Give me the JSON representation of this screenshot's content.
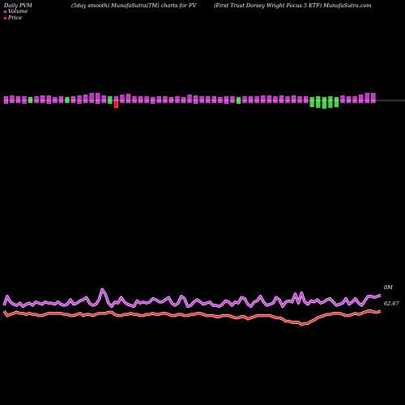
{
  "header": {
    "left": "Daily PVM",
    "center": "(5day smooth) MunafaSutra(TM) charts for FV",
    "right": "(First Trust Dorsey Wright Focus 5 ETF) MunafaSutra.com"
  },
  "colors": {
    "background": "#000000",
    "volume_up": "#e020e0",
    "volume_down": "#30e030",
    "volume_neg": "#ff1010",
    "price": "#ff2020",
    "volume_line": "#d030f0",
    "price_line_outline": "#ffffff"
  },
  "chart_data": [
    {
      "type": "bar",
      "description_series": "volume",
      "legend": [
        {
          "name": "Volume",
          "color": "#e020e0"
        },
        {
          "name": "Price",
          "color": "#ff2020"
        }
      ],
      "bars": [
        {
          "up": 5,
          "down": 4,
          "c": "m"
        },
        {
          "up": 6,
          "down": 3,
          "c": "m"
        },
        {
          "up": 5,
          "down": 3,
          "c": "m"
        },
        {
          "up": 5,
          "down": 4,
          "c": "m"
        },
        {
          "up": 4,
          "down": 3,
          "c": "g"
        },
        {
          "up": 5,
          "down": 3,
          "c": "m"
        },
        {
          "up": 6,
          "down": 3,
          "c": "m"
        },
        {
          "up": 6,
          "down": 4,
          "c": "m"
        },
        {
          "up": 4,
          "down": 3,
          "c": "m"
        },
        {
          "up": 5,
          "down": 3,
          "c": "m"
        },
        {
          "up": 4,
          "down": 3,
          "c": "g"
        },
        {
          "up": 5,
          "down": 3,
          "c": "m"
        },
        {
          "up": 6,
          "down": 4,
          "c": "m"
        },
        {
          "up": 7,
          "down": 3,
          "c": "m"
        },
        {
          "up": 9,
          "down": 3,
          "c": "m"
        },
        {
          "up": 9,
          "down": 4,
          "c": "m"
        },
        {
          "up": 6,
          "down": 3,
          "c": "m"
        },
        {
          "up": 5,
          "down": 4,
          "c": "g"
        },
        {
          "up": 5,
          "down": 9,
          "c": "r"
        },
        {
          "up": 7,
          "down": 3,
          "c": "m"
        },
        {
          "up": 8,
          "down": 3,
          "c": "m"
        },
        {
          "up": 5,
          "down": 3,
          "c": "m"
        },
        {
          "up": 5,
          "down": 3,
          "c": "m"
        },
        {
          "up": 5,
          "down": 3,
          "c": "m"
        },
        {
          "up": 4,
          "down": 4,
          "c": "m"
        },
        {
          "up": 5,
          "down": 3,
          "c": "m"
        },
        {
          "up": 5,
          "down": 3,
          "c": "m"
        },
        {
          "up": 4,
          "down": 3,
          "c": "m"
        },
        {
          "up": 5,
          "down": 3,
          "c": "m"
        },
        {
          "up": 4,
          "down": 3,
          "c": "m"
        },
        {
          "up": 7,
          "down": 3,
          "c": "m"
        },
        {
          "up": 6,
          "down": 4,
          "c": "m"
        },
        {
          "up": 5,
          "down": 3,
          "c": "m"
        },
        {
          "up": 5,
          "down": 3,
          "c": "m"
        },
        {
          "up": 5,
          "down": 3,
          "c": "m"
        },
        {
          "up": 4,
          "down": 3,
          "c": "m"
        },
        {
          "up": 5,
          "down": 4,
          "c": "m"
        },
        {
          "up": 5,
          "down": 3,
          "c": "m"
        },
        {
          "up": 4,
          "down": 4,
          "c": "g"
        },
        {
          "up": 5,
          "down": 3,
          "c": "m"
        },
        {
          "up": 5,
          "down": 3,
          "c": "m"
        },
        {
          "up": 5,
          "down": 3,
          "c": "m"
        },
        {
          "up": 6,
          "down": 3,
          "c": "m"
        },
        {
          "up": 6,
          "down": 3,
          "c": "m"
        },
        {
          "up": 5,
          "down": 3,
          "c": "m"
        },
        {
          "up": 6,
          "down": 3,
          "c": "m"
        },
        {
          "up": 5,
          "down": 3,
          "c": "m"
        },
        {
          "up": 6,
          "down": 3,
          "c": "m"
        },
        {
          "up": 5,
          "down": 3,
          "c": "m"
        },
        {
          "up": 5,
          "down": 3,
          "c": "m"
        },
        {
          "up": 4,
          "down": 8,
          "c": "g"
        },
        {
          "up": 5,
          "down": 9,
          "c": "g"
        },
        {
          "up": 4,
          "down": 10,
          "c": "g"
        },
        {
          "up": 5,
          "down": 9,
          "c": "g"
        },
        {
          "up": 4,
          "down": 8,
          "c": "g"
        },
        {
          "up": 6,
          "down": 3,
          "c": "m"
        },
        {
          "up": 5,
          "down": 3,
          "c": "m"
        },
        {
          "up": 5,
          "down": 3,
          "c": "m"
        },
        {
          "up": 7,
          "down": 3,
          "c": "m"
        },
        {
          "up": 9,
          "down": 3,
          "c": "m"
        },
        {
          "up": 9,
          "down": 3,
          "c": "m"
        }
      ],
      "ylim": [
        -12,
        12
      ]
    },
    {
      "type": "line",
      "series": [
        {
          "color": "#d030f0",
          "values": [
            45,
            53,
            48,
            46,
            45,
            47,
            44,
            46,
            47,
            45,
            48,
            47,
            46,
            48,
            47,
            47,
            46,
            48,
            46,
            45,
            46,
            50,
            46,
            47,
            49,
            50,
            52,
            47,
            45,
            46,
            50,
            59,
            55,
            47,
            44,
            48,
            47,
            52,
            48,
            46,
            45,
            44,
            49,
            47,
            48,
            47,
            48,
            51,
            50,
            48,
            48,
            50,
            52,
            47,
            45,
            47,
            53,
            51,
            44,
            45,
            48,
            50,
            48,
            46,
            47,
            48,
            45,
            45,
            44,
            46,
            49,
            48,
            45,
            48,
            47,
            52,
            51,
            46,
            44,
            48,
            49,
            53,
            48,
            45,
            46,
            47,
            52,
            50,
            44,
            48,
            49,
            48,
            55,
            47,
            56,
            48,
            46,
            49,
            48,
            50,
            47,
            48,
            50,
            51,
            48,
            45,
            46,
            47,
            51,
            46,
            48,
            51,
            47,
            45,
            49,
            53,
            53,
            52,
            53,
            54
          ]
        },
        {
          "color": "#ff2020",
          "values": [
            40,
            36,
            37,
            38,
            39,
            38,
            38,
            37,
            38,
            37,
            37,
            36,
            36,
            37,
            38,
            38,
            38,
            38,
            38,
            37,
            37,
            36,
            36,
            37,
            38,
            36,
            37,
            37,
            36,
            37,
            38,
            38,
            38,
            39,
            39,
            37,
            36,
            36,
            37,
            37,
            38,
            37,
            37,
            36,
            36,
            37,
            37,
            38,
            37,
            37,
            38,
            38,
            37,
            36,
            36,
            37,
            37,
            36,
            36,
            37,
            37,
            38,
            38,
            37,
            36,
            36,
            36,
            35,
            35,
            36,
            36,
            36,
            35,
            34,
            34,
            35,
            35,
            33,
            34,
            35,
            36,
            36,
            36,
            36,
            36,
            35,
            34,
            34,
            33,
            31,
            31,
            30,
            30,
            30,
            28,
            29,
            29,
            31,
            32,
            34,
            35,
            36,
            37,
            37,
            38,
            38,
            38,
            37,
            36,
            36,
            37,
            38,
            37,
            38,
            39,
            40,
            40,
            39,
            39,
            40
          ]
        }
      ],
      "labels": {
        "volume_line": "0M",
        "price_line": "62.67"
      },
      "ylim": [
        0,
        100
      ]
    }
  ]
}
